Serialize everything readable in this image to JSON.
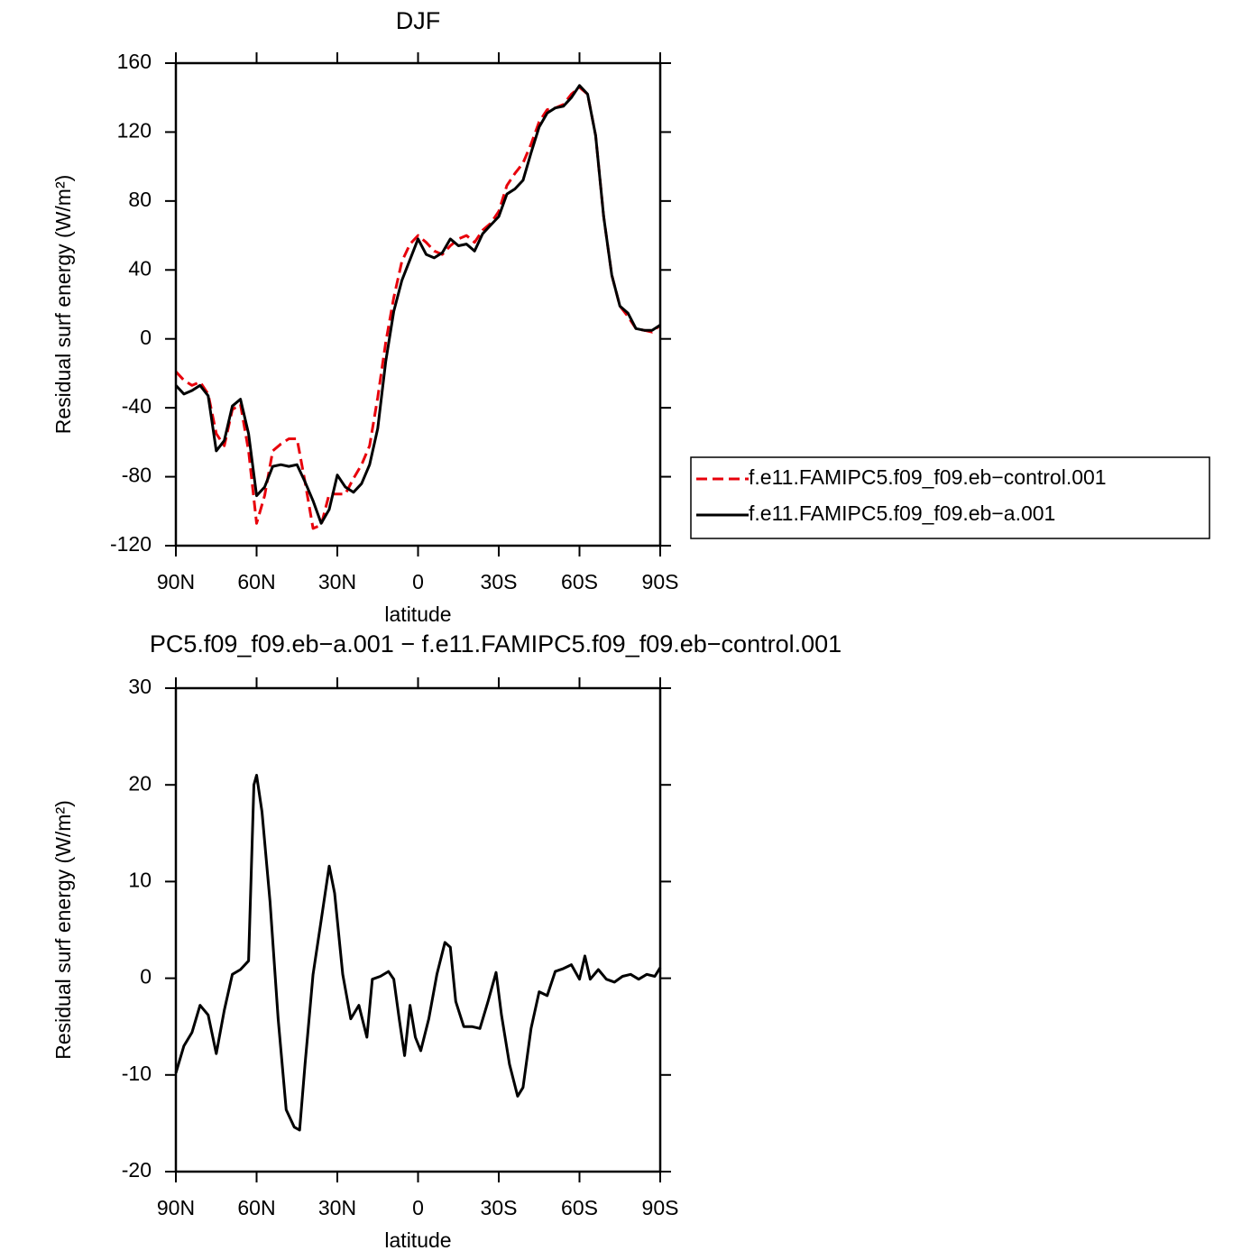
{
  "chart_data": [
    {
      "type": "line",
      "title": "DJF",
      "xlabel": "latitude",
      "ylabel": "Residual surf energy (W/m²)",
      "xlim": [
        90,
        -90
      ],
      "ylim": [
        -120,
        160
      ],
      "xticks": [
        {
          "value": 90,
          "label": "90N"
        },
        {
          "value": 60,
          "label": "60N"
        },
        {
          "value": 30,
          "label": "30N"
        },
        0,
        {
          "value": -30,
          "label": "30S"
        },
        {
          "value": -60,
          "label": "60S"
        },
        {
          "value": -90,
          "label": "90S"
        }
      ],
      "yticks": [
        -120,
        -80,
        -40,
        0,
        40,
        80,
        120,
        160
      ],
      "legend_position": "right",
      "x": [
        90,
        87,
        84,
        81,
        78,
        75,
        72,
        69,
        66,
        63,
        60,
        57,
        54,
        51,
        48,
        45,
        42,
        39,
        36,
        33,
        30,
        27,
        24,
        21,
        18,
        15,
        12,
        9,
        6,
        3,
        0,
        -3,
        -6,
        -9,
        -12,
        -15,
        -18,
        -21,
        -24,
        -27,
        -30,
        -33,
        -36,
        -39,
        -42,
        -45,
        -48,
        -51,
        -54,
        -57,
        -60,
        -63,
        -66,
        -69,
        -72,
        -75,
        -78,
        -81,
        -84,
        -87,
        -90
      ],
      "series": [
        {
          "name": "f.e11.FAMIPC5.f09_f09.eb−control.001",
          "color": "#e8000b",
          "dash": true,
          "values": [
            -19,
            -24,
            -27,
            -25,
            -32,
            -55,
            -62,
            -41,
            -38,
            -65,
            -107,
            -91,
            -65,
            -61,
            -58,
            -58,
            -83,
            -110,
            -108,
            -90,
            -90,
            -90,
            -81,
            -73,
            -62,
            -34,
            -2,
            24,
            45,
            55,
            60,
            56,
            51,
            49,
            54,
            58,
            60,
            56,
            63,
            67,
            74,
            89,
            96,
            102,
            113,
            126,
            133,
            134,
            136,
            142,
            146,
            142,
            118,
            71,
            37,
            19,
            13,
            6,
            5,
            4,
            8
          ]
        },
        {
          "name": "f.e11.FAMIPC5.f09_f09.eb−a.001",
          "color": "#000000",
          "dash": false,
          "values": [
            -27,
            -32,
            -30,
            -27,
            -33,
            -65,
            -59,
            -39,
            -35,
            -55,
            -91,
            -86,
            -74,
            -73,
            -74,
            -73,
            -83,
            -94,
            -107,
            -99,
            -79,
            -86,
            -89,
            -84,
            -73,
            -52,
            -13,
            16,
            34,
            46,
            58,
            49,
            47,
            50,
            58,
            54,
            55,
            51,
            61,
            66,
            71,
            84,
            87,
            92,
            108,
            123,
            131,
            134,
            135,
            140,
            147,
            142,
            118,
            71,
            37,
            19,
            15,
            6,
            5,
            5,
            8
          ]
        }
      ]
    },
    {
      "type": "line",
      "title": "PC5.f09_f09.eb−a.001 − f.e11.FAMIPC5.f09_f09.eb−control.001",
      "xlabel": "latitude",
      "ylabel": "Residual surf energy (W/m²)",
      "xlim": [
        90,
        -90
      ],
      "ylim": [
        -20,
        30
      ],
      "xticks": [
        {
          "value": 90,
          "label": "90N"
        },
        {
          "value": 60,
          "label": "60N"
        },
        {
          "value": 30,
          "label": "30N"
        },
        0,
        {
          "value": -30,
          "label": "30S"
        },
        {
          "value": -60,
          "label": "60S"
        },
        {
          "value": -90,
          "label": "90S"
        }
      ],
      "yticks": [
        -20,
        -10,
        0,
        10,
        20,
        30
      ],
      "x": [
        90,
        87,
        84,
        81,
        78,
        75,
        72,
        69,
        66,
        63,
        61,
        60,
        58,
        55,
        52,
        49,
        46,
        44,
        42,
        39,
        36,
        33,
        31,
        28,
        25,
        22,
        19,
        17,
        14,
        11,
        9,
        7,
        5,
        3,
        1,
        -1,
        -4,
        -7,
        -10,
        -12,
        -14,
        -17,
        -20,
        -23,
        -26,
        -29,
        -31,
        -34,
        -37,
        -39,
        -42,
        -45,
        -48,
        -51,
        -54,
        -57,
        -60,
        -62,
        -64,
        -67,
        -70,
        -73,
        -76,
        -79,
        -82,
        -85,
        -88,
        -90
      ],
      "series": [
        {
          "color": "#000000",
          "dash": false,
          "values": [
            -9.8,
            -7,
            -5.6,
            -2.8,
            -3.8,
            -7.8,
            -3.3,
            0.4,
            0.9,
            1.8,
            20,
            21,
            17.2,
            7.9,
            -4.2,
            -13.6,
            -15.4,
            -15.7,
            -8.9,
            0.4,
            6,
            11.6,
            8.8,
            0.4,
            -4.2,
            -2.8,
            -6.1,
            -0.1,
            0.2,
            0.7,
            -0.1,
            -4.2,
            -8,
            -2.8,
            -6.1,
            -7.5,
            -4.2,
            0.4,
            3.7,
            3.2,
            -2.4,
            -5,
            -5,
            -5.2,
            -2.4,
            0.6,
            -3.8,
            -8.9,
            -12.2,
            -11.3,
            -5.2,
            -1.4,
            -1.8,
            0.7,
            1,
            1.4,
            -0.1,
            2.3,
            -0.1,
            0.9,
            -0.1,
            -0.4,
            0.2,
            0.4,
            -0.1,
            0.4,
            0.2,
            1.1
          ]
        }
      ]
    }
  ]
}
